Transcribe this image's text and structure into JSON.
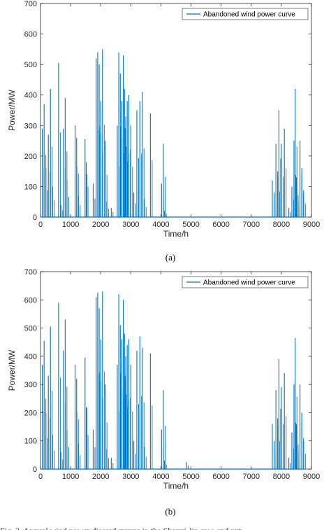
{
  "chart_data": [
    {
      "panel_label": "(a)",
      "type": "line",
      "xlabel": "Time/h",
      "ylabel": "Power/MW",
      "xlim": [
        0,
        9000
      ],
      "ylim": [
        0,
        700
      ],
      "xticks": [
        0,
        1000,
        2000,
        3000,
        4000,
        5000,
        6000,
        7000,
        8000,
        9000
      ],
      "yticks": [
        0,
        100,
        200,
        300,
        400,
        500,
        600,
        700
      ],
      "grid": false,
      "legend_position": "top-right",
      "series": [
        {
          "name": "Abandoned wind power curve",
          "color": "#0072bd",
          "x": [
            60,
            120,
            180,
            260,
            330,
            400,
            600,
            680,
            760,
            820,
            880,
            1150,
            1200,
            1260,
            1480,
            1520,
            1750,
            1850,
            1900,
            1950,
            2000,
            2060,
            2150,
            2200,
            2350,
            2550,
            2600,
            2650,
            2700,
            2750,
            2790,
            2830,
            2880,
            2930,
            3000,
            3100,
            3200,
            3300,
            3380,
            3450,
            3650,
            4020,
            4080,
            4120,
            7700,
            7760,
            7820,
            7880,
            7920,
            8000,
            8100,
            8250,
            8350,
            8420,
            8460,
            8500,
            8560,
            8620,
            8680,
            8740
          ],
          "y": [
            290,
            370,
            160,
            270,
            420,
            100,
            505,
            40,
            290,
            390,
            120,
            300,
            260,
            70,
            255,
            180,
            110,
            520,
            540,
            500,
            380,
            550,
            250,
            50,
            30,
            300,
            540,
            470,
            380,
            530,
            420,
            330,
            380,
            400,
            300,
            80,
            350,
            380,
            410,
            60,
            340,
            110,
            240,
            20,
            120,
            80,
            240,
            150,
            350,
            240,
            290,
            30,
            100,
            250,
            420,
            130,
            50,
            250,
            160,
            80
          ]
        }
      ]
    },
    {
      "panel_label": "(b)",
      "type": "line",
      "xlabel": "Time/h",
      "ylabel": "Power/MW",
      "xlim": [
        0,
        9000
      ],
      "ylim": [
        0,
        700
      ],
      "xticks": [
        0,
        1000,
        2000,
        3000,
        4000,
        5000,
        6000,
        7000,
        8000,
        9000
      ],
      "yticks": [
        0,
        100,
        200,
        300,
        400,
        500,
        600,
        700
      ],
      "grid": false,
      "legend_position": "top-right",
      "series": [
        {
          "name": "Abandoned wind power curve",
          "color": "#0072bd",
          "x": [
            60,
            120,
            180,
            260,
            330,
            400,
            600,
            680,
            760,
            820,
            880,
            1150,
            1200,
            1260,
            1480,
            1520,
            1750,
            1850,
            1900,
            1950,
            2000,
            2060,
            2150,
            2200,
            2350,
            2550,
            2600,
            2650,
            2700,
            2750,
            2790,
            2830,
            2880,
            2930,
            3000,
            3100,
            3200,
            3300,
            3380,
            3450,
            3650,
            4020,
            4080,
            4120,
            4850,
            7700,
            7760,
            7820,
            7880,
            7920,
            8000,
            8100,
            8250,
            8350,
            8420,
            8460,
            8500,
            8560,
            8620,
            8680,
            8740
          ],
          "y": [
            370,
            455,
            200,
            330,
            505,
            120,
            590,
            60,
            420,
            530,
            140,
            370,
            320,
            90,
            395,
            220,
            140,
            610,
            625,
            570,
            460,
            630,
            300,
            70,
            40,
            370,
            620,
            510,
            460,
            600,
            480,
            400,
            440,
            460,
            370,
            100,
            420,
            470,
            430,
            80,
            410,
            140,
            280,
            30,
            25,
            160,
            100,
            280,
            180,
            390,
            290,
            340,
            40,
            130,
            300,
            465,
            160,
            60,
            300,
            200,
            100
          ]
        }
      ]
    }
  ],
  "caption": "Fig. 2. Annual wind power discard curves in the Shanxi Jin area and nut"
}
